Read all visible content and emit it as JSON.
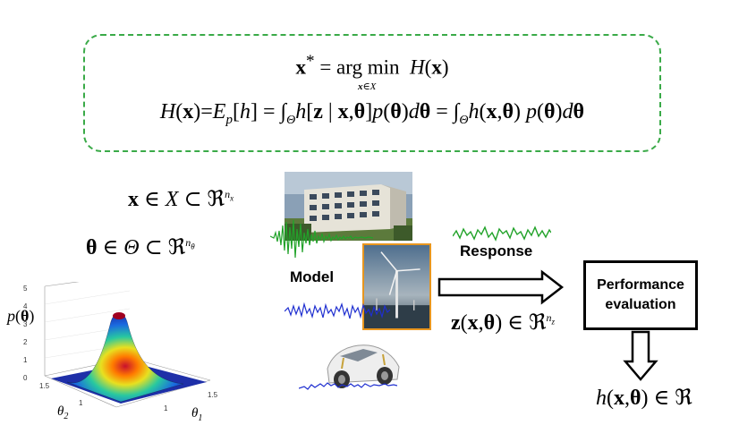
{
  "formula": {
    "optimization": "x* = arg min H(x)",
    "argmin_subscript": "x∈X",
    "objective": "H(x)=E_p[h] = ∫_Θ h[z | x,θ] p(θ) dθ = ∫_Θ h(x,θ) p(θ) dθ"
  },
  "design_space": "x ∈ X ⊂ ℜ^n_x",
  "uncertain_space": "θ ∈ Θ ⊂ ℜ^n_θ",
  "pdf": {
    "label": "p(θ)",
    "z_ticks": [
      "5",
      "4",
      "3",
      "2",
      "1",
      "0"
    ],
    "theta1_ticks": [
      "1",
      "1.5"
    ],
    "theta2_ticks": [
      "1.5",
      "1"
    ],
    "theta1_label": "θ1",
    "theta2_label": "θ2"
  },
  "model_label": "Model",
  "response_label": "Response",
  "response_output": "z(x,θ) ∈ ℜ^n_z",
  "performance_box": {
    "line1": "Performance",
    "line2": "evaluation"
  },
  "performance_output": "h(x,θ) ∈ ℜ",
  "icons": [
    "building-photo",
    "wind-turbine-photo",
    "car-chassis-photo",
    "green-seismic-signal",
    "blue-wind-signal",
    "blue-road-signal",
    "green-response-signal",
    "right-arrow",
    "down-arrow"
  ],
  "colors": {
    "dashed_border": "#3aaa48",
    "turbine_frame": "#e8961e",
    "signal_green": "#22a32a",
    "signal_blue": "#1f2fd0"
  }
}
